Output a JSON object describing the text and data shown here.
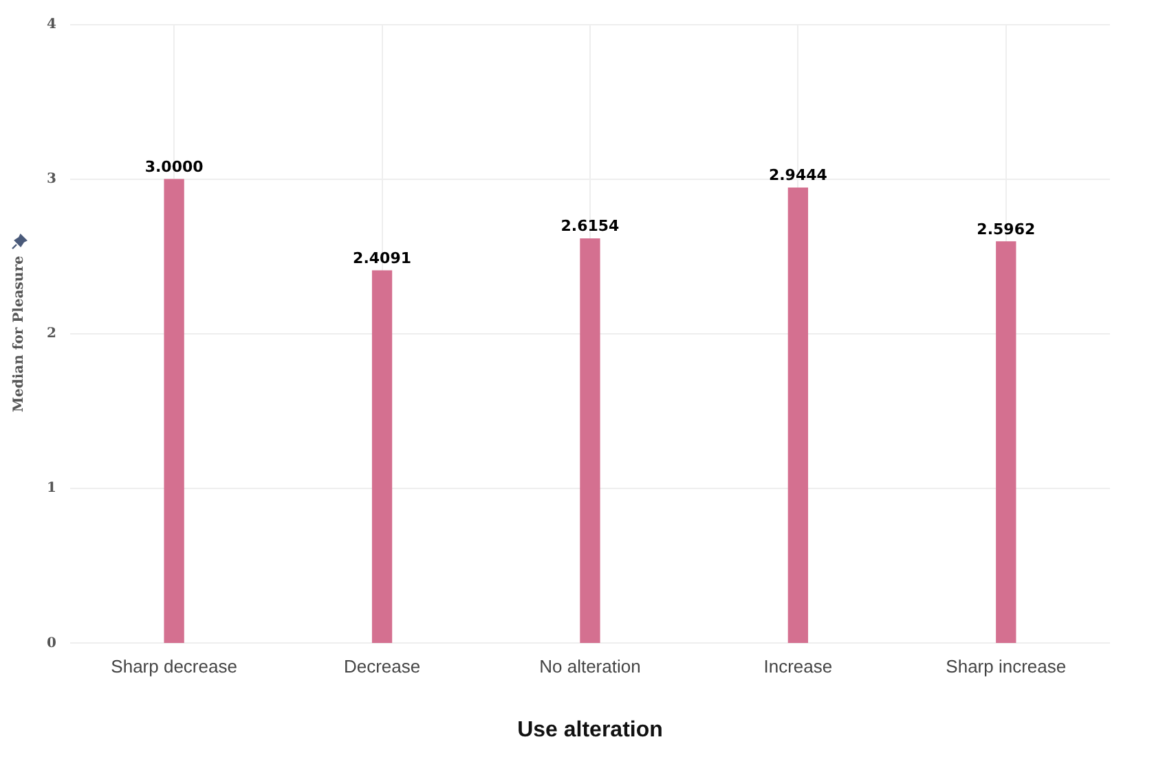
{
  "chart_data": {
    "type": "bar",
    "xlabel": "Use alteration",
    "ylabel": "Median for Pleasure",
    "categories": [
      "Sharp decrease",
      "Decrease",
      "No alteration",
      "Increase",
      "Sharp increase"
    ],
    "values": [
      3.0,
      2.4091,
      2.6154,
      2.9444,
      2.5962
    ],
    "value_labels": [
      "3.0000",
      "2.4091",
      "2.6154",
      "2.9444",
      "2.5962"
    ],
    "color": "#d47090",
    "ylim": [
      0,
      4
    ],
    "yticks": [
      0,
      1,
      2,
      3,
      4
    ],
    "grid": true,
    "legend": false
  }
}
